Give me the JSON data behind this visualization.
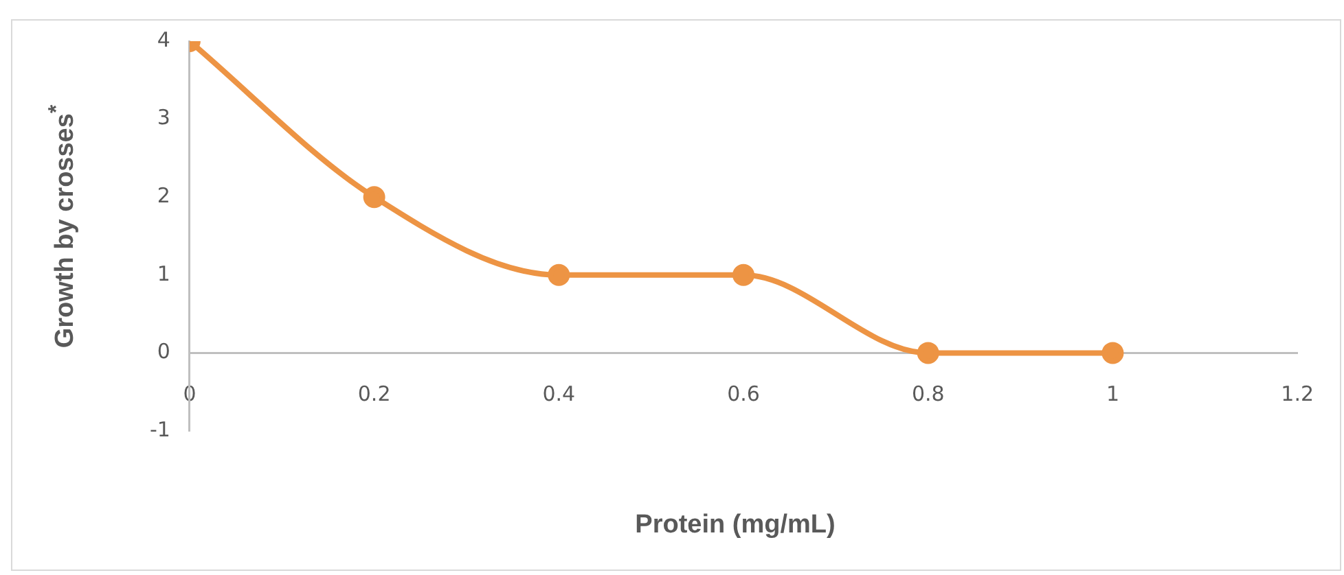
{
  "chart_data": {
    "type": "line",
    "xlabel": "Protein (mg/mL)",
    "ylabel": "Growth by crosses$^{*}$",
    "x": [
      0,
      0.2,
      0.4,
      0.6,
      0.8,
      1
    ],
    "series": [
      {
        "color": "#ed9444",
        "values": [
          4,
          2,
          1,
          1,
          0,
          0
        ]
      }
    ],
    "xlim": [
      0,
      1.2
    ],
    "xticks": [
      0,
      0.2,
      0.4,
      0.6,
      0.8,
      1,
      1.2
    ],
    "ylim": [
      -1,
      4
    ],
    "yticks": [
      -1,
      0,
      1,
      2,
      3,
      4
    ],
    "grid": false,
    "legend": false,
    "marker": "circle",
    "line_style": "solid"
  }
}
